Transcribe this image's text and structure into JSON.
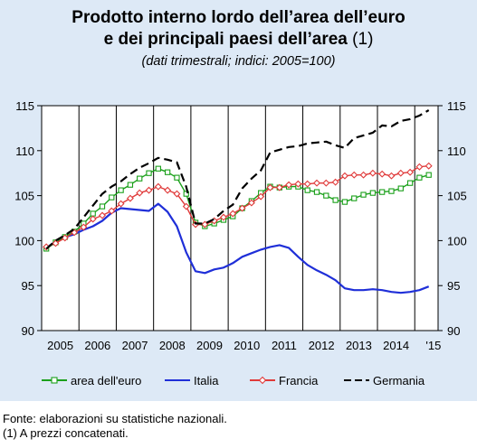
{
  "title_line1": "Prodotto interno lordo dell’area dell’euro",
  "title_line2": "e dei principali paesi dell’area",
  "title_note": "(1)",
  "subtitle": "(dati trimestrali; indici: 2005=100)",
  "footnotes": [
    "Fonte: elaborazioni su statistiche nazionali.",
    "(1) A prezzi concatenati."
  ],
  "chart_data": {
    "type": "line",
    "x": [
      "2005 Q1",
      "2005 Q2",
      "2005 Q3",
      "2005 Q4",
      "2006 Q1",
      "2006 Q2",
      "2006 Q3",
      "2006 Q4",
      "2007 Q1",
      "2007 Q2",
      "2007 Q3",
      "2007 Q4",
      "2008 Q1",
      "2008 Q2",
      "2008 Q3",
      "2008 Q4",
      "2009 Q1",
      "2009 Q2",
      "2009 Q3",
      "2009 Q4",
      "2010 Q1",
      "2010 Q2",
      "2010 Q3",
      "2010 Q4",
      "2011 Q1",
      "2011 Q2",
      "2011 Q3",
      "2011 Q4",
      "2012 Q1",
      "2012 Q2",
      "2012 Q3",
      "2012 Q4",
      "2013 Q1",
      "2013 Q2",
      "2013 Q3",
      "2013 Q4",
      "2014 Q1",
      "2014 Q2",
      "2014 Q3",
      "2014 Q4",
      "2015 Q1",
      "2015 Q2"
    ],
    "year_labels": [
      "2005",
      "2006",
      "2007",
      "2008",
      "2009",
      "2010",
      "2011",
      "2012",
      "2013",
      "2014",
      "'15"
    ],
    "ylim": [
      90,
      115
    ],
    "yticks": [
      90,
      95,
      100,
      105,
      110,
      115
    ],
    "grid": "vertical year separators",
    "legend_position": "bottom",
    "series": [
      {
        "name": "area dell'euro",
        "color": "#1aa01a",
        "style": "solid-square-markers",
        "values": [
          99.1,
          99.8,
          100.4,
          101.0,
          101.9,
          103.0,
          103.8,
          104.8,
          105.6,
          106.2,
          106.9,
          107.5,
          108.0,
          107.6,
          107.0,
          105.2,
          102.0,
          101.6,
          101.9,
          102.3,
          102.7,
          103.6,
          104.4,
          105.3,
          106.0,
          105.9,
          106.0,
          106.0,
          105.6,
          105.4,
          105.0,
          104.5,
          104.3,
          104.7,
          105.1,
          105.3,
          105.4,
          105.5,
          105.8,
          106.4,
          107.0,
          107.3
        ]
      },
      {
        "name": "Italia",
        "color": "#1f2fd8",
        "style": "solid",
        "values": [
          99.2,
          99.9,
          100.4,
          100.7,
          101.2,
          101.6,
          102.2,
          103.1,
          103.6,
          103.5,
          103.4,
          103.3,
          104.1,
          103.2,
          101.6,
          98.7,
          96.6,
          96.4,
          96.8,
          97.0,
          97.5,
          98.2,
          98.6,
          99.0,
          99.3,
          99.5,
          99.2,
          98.2,
          97.3,
          96.7,
          96.2,
          95.6,
          94.7,
          94.5,
          94.5,
          94.6,
          94.5,
          94.3,
          94.2,
          94.3,
          94.5,
          94.9
        ]
      },
      {
        "name": "Francia",
        "color": "#e03a3a",
        "style": "solid-diamond-markers",
        "values": [
          99.3,
          99.7,
          100.3,
          100.9,
          101.5,
          102.4,
          102.8,
          103.3,
          104.1,
          104.7,
          105.3,
          105.6,
          106.0,
          105.6,
          105.2,
          103.8,
          101.8,
          101.8,
          102.2,
          102.6,
          103.0,
          103.6,
          104.2,
          104.9,
          105.9,
          105.9,
          106.2,
          106.3,
          106.3,
          106.4,
          106.4,
          106.5,
          107.2,
          107.3,
          107.3,
          107.5,
          107.4,
          107.2,
          107.5,
          107.6,
          108.2,
          108.3
        ]
      },
      {
        "name": "Germania",
        "color": "#000000",
        "style": "dashed",
        "values": [
          99.1,
          100.0,
          100.6,
          101.3,
          102.6,
          103.9,
          105.2,
          106.0,
          106.6,
          107.4,
          108.1,
          108.6,
          109.2,
          109.0,
          108.7,
          106.0,
          101.9,
          101.9,
          102.4,
          103.3,
          104.0,
          105.8,
          106.9,
          107.8,
          109.8,
          110.1,
          110.4,
          110.5,
          110.8,
          110.9,
          111.0,
          110.6,
          110.3,
          111.4,
          111.7,
          112.0,
          112.8,
          112.7,
          113.3,
          113.5,
          113.9,
          114.5
        ]
      }
    ]
  }
}
